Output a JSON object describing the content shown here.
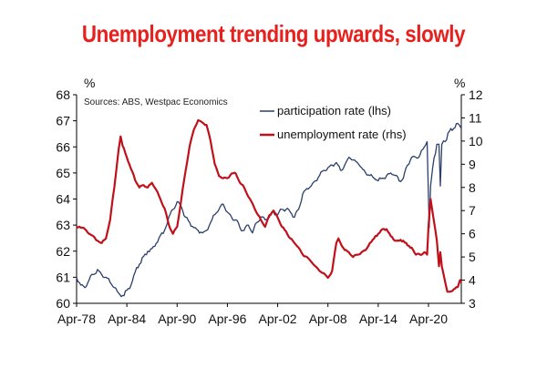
{
  "chart_data": {
    "type": "line",
    "title": "Unemployment trending upwards, slowly",
    "source": "Sources: ABS, Westpac Economics",
    "y_left_unit": "%",
    "y_right_unit": "%",
    "ylim_left": [
      60,
      68
    ],
    "ylim_right": [
      3,
      12
    ],
    "y_left_ticks": [
      "60",
      "61",
      "62",
      "63",
      "64",
      "65",
      "66",
      "67",
      "68"
    ],
    "y_right_ticks": [
      "3",
      "4",
      "5",
      "6",
      "7",
      "8",
      "9",
      "10",
      "11",
      "12"
    ],
    "xlim": [
      "1978-04",
      "2024-03"
    ],
    "x_ticks": [
      "Apr-78",
      "Apr-84",
      "Apr-90",
      "Apr-96",
      "Apr-02",
      "Apr-08",
      "Apr-14",
      "Apr-20"
    ],
    "grid": false,
    "legend_position": "top-right",
    "series": [
      {
        "name": "participation rate (lhs)",
        "axis": "left",
        "color": "#2b3f6b",
        "points": [
          [
            "1978-04",
            61.0
          ],
          [
            "1978-10",
            60.7
          ],
          [
            "1979-04",
            60.6
          ],
          [
            "1979-10",
            60.9
          ],
          [
            "1980-04",
            61.1
          ],
          [
            "1980-10",
            61.3
          ],
          [
            "1981-04",
            61.1
          ],
          [
            "1981-10",
            61.0
          ],
          [
            "1982-04",
            60.8
          ],
          [
            "1982-10",
            60.6
          ],
          [
            "1983-04",
            60.4
          ],
          [
            "1983-10",
            60.3
          ],
          [
            "1984-04",
            60.5
          ],
          [
            "1984-10",
            60.7
          ],
          [
            "1985-04",
            61.2
          ],
          [
            "1985-10",
            61.5
          ],
          [
            "1986-04",
            61.8
          ],
          [
            "1986-10",
            62.0
          ],
          [
            "1987-04",
            62.1
          ],
          [
            "1987-10",
            62.3
          ],
          [
            "1988-04",
            62.6
          ],
          [
            "1988-10",
            62.8
          ],
          [
            "1989-04",
            63.3
          ],
          [
            "1989-10",
            63.6
          ],
          [
            "1990-04",
            63.9
          ],
          [
            "1990-10",
            63.7
          ],
          [
            "1991-04",
            63.3
          ],
          [
            "1991-10",
            63.1
          ],
          [
            "1992-04",
            62.9
          ],
          [
            "1992-10",
            62.8
          ],
          [
            "1993-04",
            62.7
          ],
          [
            "1993-10",
            62.8
          ],
          [
            "1994-04",
            63.1
          ],
          [
            "1994-10",
            63.4
          ],
          [
            "1995-04",
            63.6
          ],
          [
            "1995-10",
            63.8
          ],
          [
            "1996-04",
            63.5
          ],
          [
            "1996-10",
            63.3
          ],
          [
            "1997-04",
            63.2
          ],
          [
            "1997-10",
            62.9
          ],
          [
            "1998-04",
            62.8
          ],
          [
            "1998-10",
            63.0
          ],
          [
            "1999-04",
            62.7
          ],
          [
            "1999-10",
            63.1
          ],
          [
            "2000-04",
            63.3
          ],
          [
            "2000-10",
            63.2
          ],
          [
            "2001-04",
            63.3
          ],
          [
            "2001-10",
            63.5
          ],
          [
            "2002-04",
            63.4
          ],
          [
            "2002-10",
            63.6
          ],
          [
            "2003-04",
            63.6
          ],
          [
            "2003-10",
            63.5
          ],
          [
            "2004-04",
            63.3
          ],
          [
            "2004-10",
            63.6
          ],
          [
            "2005-04",
            64.2
          ],
          [
            "2005-10",
            64.4
          ],
          [
            "2006-04",
            64.5
          ],
          [
            "2006-10",
            64.7
          ],
          [
            "2007-04",
            64.9
          ],
          [
            "2007-10",
            65.1
          ],
          [
            "2008-04",
            65.2
          ],
          [
            "2008-10",
            65.3
          ],
          [
            "2009-04",
            65.4
          ],
          [
            "2009-10",
            65.1
          ],
          [
            "2010-04",
            65.3
          ],
          [
            "2010-10",
            65.6
          ],
          [
            "2011-04",
            65.5
          ],
          [
            "2011-10",
            65.4
          ],
          [
            "2012-04",
            65.2
          ],
          [
            "2012-10",
            65.0
          ],
          [
            "2013-04",
            64.9
          ],
          [
            "2013-10",
            64.8
          ],
          [
            "2014-04",
            64.7
          ],
          [
            "2014-10",
            64.8
          ],
          [
            "2015-04",
            64.9
          ],
          [
            "2015-10",
            65.0
          ],
          [
            "2016-04",
            64.9
          ],
          [
            "2016-10",
            64.7
          ],
          [
            "2017-04",
            64.8
          ],
          [
            "2017-10",
            65.3
          ],
          [
            "2018-04",
            65.6
          ],
          [
            "2018-10",
            65.6
          ],
          [
            "2019-04",
            65.7
          ],
          [
            "2019-10",
            66.0
          ],
          [
            "2020-02",
            66.2
          ],
          [
            "2020-05",
            62.9
          ],
          [
            "2020-07",
            64.5
          ],
          [
            "2020-10",
            65.2
          ],
          [
            "2021-04",
            66.1
          ],
          [
            "2021-07",
            66.1
          ],
          [
            "2021-09",
            64.5
          ],
          [
            "2021-11",
            66.1
          ],
          [
            "2022-04",
            66.2
          ],
          [
            "2022-10",
            66.6
          ],
          [
            "2023-04",
            66.7
          ],
          [
            "2023-10",
            66.9
          ],
          [
            "2024-03",
            66.7
          ]
        ]
      },
      {
        "name": "unemployment rate (rhs)",
        "axis": "right",
        "color": "#c0101a",
        "points": [
          [
            "1978-04",
            6.3
          ],
          [
            "1979-04",
            6.2
          ],
          [
            "1979-10",
            6.0
          ],
          [
            "1980-04",
            5.9
          ],
          [
            "1980-10",
            5.7
          ],
          [
            "1981-04",
            5.6
          ],
          [
            "1981-10",
            5.8
          ],
          [
            "1982-04",
            6.6
          ],
          [
            "1982-10",
            8.0
          ],
          [
            "1983-04",
            9.6
          ],
          [
            "1983-07",
            10.2
          ],
          [
            "1983-10",
            9.8
          ],
          [
            "1984-04",
            9.3
          ],
          [
            "1984-10",
            8.8
          ],
          [
            "1985-04",
            8.3
          ],
          [
            "1985-10",
            8.0
          ],
          [
            "1986-04",
            8.1
          ],
          [
            "1986-10",
            8.0
          ],
          [
            "1987-04",
            8.2
          ],
          [
            "1987-10",
            7.9
          ],
          [
            "1988-04",
            7.5
          ],
          [
            "1988-10",
            7.1
          ],
          [
            "1989-04",
            6.4
          ],
          [
            "1989-10",
            6.0
          ],
          [
            "1990-04",
            6.3
          ],
          [
            "1990-10",
            7.5
          ],
          [
            "1991-04",
            8.7
          ],
          [
            "1991-10",
            9.8
          ],
          [
            "1992-04",
            10.5
          ],
          [
            "1992-10",
            10.9
          ],
          [
            "1993-04",
            10.8
          ],
          [
            "1993-10",
            10.7
          ],
          [
            "1994-04",
            10.0
          ],
          [
            "1994-10",
            9.0
          ],
          [
            "1995-04",
            8.5
          ],
          [
            "1995-10",
            8.4
          ],
          [
            "1996-04",
            8.4
          ],
          [
            "1996-10",
            8.6
          ],
          [
            "1997-04",
            8.6
          ],
          [
            "1997-10",
            8.2
          ],
          [
            "1998-04",
            8.0
          ],
          [
            "1998-10",
            7.6
          ],
          [
            "1999-04",
            7.3
          ],
          [
            "1999-10",
            6.9
          ],
          [
            "2000-04",
            6.6
          ],
          [
            "2000-10",
            6.3
          ],
          [
            "2001-04",
            6.8
          ],
          [
            "2001-10",
            7.0
          ],
          [
            "2002-04",
            6.7
          ],
          [
            "2002-10",
            6.3
          ],
          [
            "2003-04",
            6.1
          ],
          [
            "2003-10",
            5.8
          ],
          [
            "2004-04",
            5.6
          ],
          [
            "2004-10",
            5.4
          ],
          [
            "2005-04",
            5.1
          ],
          [
            "2005-10",
            5.0
          ],
          [
            "2006-04",
            4.8
          ],
          [
            "2006-10",
            4.6
          ],
          [
            "2007-04",
            4.4
          ],
          [
            "2007-10",
            4.3
          ],
          [
            "2008-04",
            4.1
          ],
          [
            "2008-10",
            4.4
          ],
          [
            "2009-04",
            5.6
          ],
          [
            "2009-07",
            5.8
          ],
          [
            "2009-10",
            5.6
          ],
          [
            "2010-04",
            5.3
          ],
          [
            "2010-10",
            5.2
          ],
          [
            "2011-04",
            5.0
          ],
          [
            "2011-10",
            5.1
          ],
          [
            "2012-04",
            5.2
          ],
          [
            "2012-10",
            5.3
          ],
          [
            "2013-04",
            5.6
          ],
          [
            "2013-10",
            5.8
          ],
          [
            "2014-04",
            6.0
          ],
          [
            "2014-10",
            6.2
          ],
          [
            "2015-04",
            6.2
          ],
          [
            "2015-10",
            5.9
          ],
          [
            "2016-04",
            5.7
          ],
          [
            "2016-10",
            5.7
          ],
          [
            "2017-04",
            5.7
          ],
          [
            "2017-10",
            5.5
          ],
          [
            "2018-04",
            5.4
          ],
          [
            "2018-10",
            5.1
          ],
          [
            "2019-04",
            5.1
          ],
          [
            "2019-10",
            5.2
          ],
          [
            "2020-02",
            5.1
          ],
          [
            "2020-04",
            6.3
          ],
          [
            "2020-07",
            7.5
          ],
          [
            "2020-10",
            6.9
          ],
          [
            "2021-04",
            5.7
          ],
          [
            "2021-07",
            4.6
          ],
          [
            "2021-09",
            5.2
          ],
          [
            "2021-11",
            4.6
          ],
          [
            "2022-04",
            3.9
          ],
          [
            "2022-07",
            3.5
          ],
          [
            "2022-10",
            3.5
          ],
          [
            "2023-04",
            3.6
          ],
          [
            "2023-10",
            3.7
          ],
          [
            "2024-01",
            4.0
          ],
          [
            "2024-03",
            3.9
          ]
        ]
      }
    ]
  }
}
